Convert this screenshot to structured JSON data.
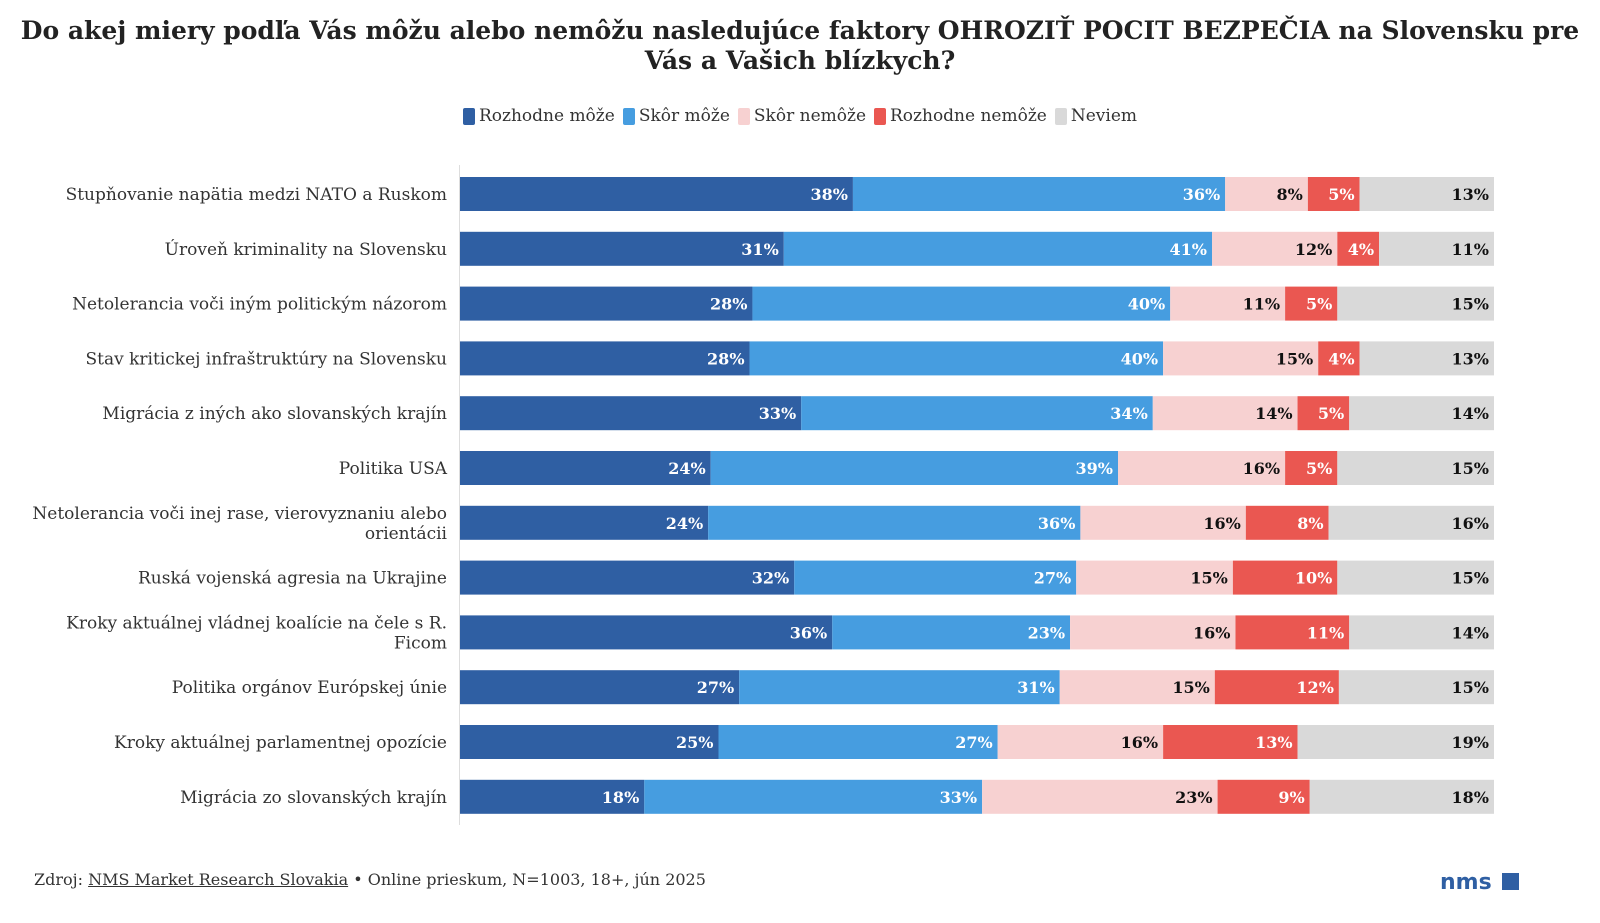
{
  "chart_data": {
    "type": "bar",
    "orientation": "horizontal",
    "stacked": true,
    "title": "Do akej miery podľa Vás môžu alebo nemôžu nasledujúce faktory OHROZIŤ POCIT BEZPEČIA na Slovensku pre Vás a Vašich blízkych?",
    "legend_position": "top",
    "grid": false,
    "categories": [
      "Stupňovanie napätia medzi NATO a Ruskom",
      "Úroveň kriminality na Slovensku",
      "Netolerancia voči iným politickým názorom",
      "Stav kritickej infraštruktúry na Slovensku",
      "Migrácia z iných ako slovanských krajín",
      "Politika USA",
      "Netolerancia voči inej rase, vierovyznaniu alebo orientácii",
      "Ruská vojenská agresia na Ukrajine",
      "Kroky aktuálnej vládnej koalície na čele s R. Ficom",
      "Politika orgánov Európskej únie",
      "Kroky aktuálnej parlamentnej opozície",
      "Migrácia zo slovanských krajín"
    ],
    "series": [
      {
        "name": "Rozhodne môže",
        "color": "#2f5fa3",
        "label_color": "#ffffff",
        "values": [
          38,
          31,
          28,
          28,
          33,
          24,
          24,
          32,
          36,
          27,
          25,
          18
        ]
      },
      {
        "name": "Skôr môže",
        "color": "#469de0",
        "label_color": "#ffffff",
        "values": [
          36,
          41,
          40,
          40,
          34,
          39,
          36,
          27,
          23,
          31,
          27,
          33
        ]
      },
      {
        "name": "Skôr nemôže",
        "color": "#f7d1d1",
        "label_color": "#111111",
        "values": [
          8,
          12,
          11,
          15,
          14,
          16,
          16,
          15,
          16,
          15,
          16,
          23
        ]
      },
      {
        "name": "Rozhodne nemôže",
        "color": "#ea5751",
        "label_color": "#ffffff",
        "values": [
          5,
          4,
          5,
          4,
          5,
          5,
          8,
          10,
          11,
          12,
          13,
          9
        ]
      },
      {
        "name": "Neviem",
        "color": "#d9d9d9",
        "label_color": "#111111",
        "values": [
          13,
          11,
          15,
          13,
          14,
          15,
          16,
          15,
          14,
          15,
          19,
          18
        ]
      }
    ],
    "value_suffix": "%"
  },
  "footer": {
    "prefix": "Zdroj: ",
    "source": "NMS Market Research Slovakia",
    "details": " • Online prieskum, N=1003, 18+, jún 2025"
  },
  "logo": {
    "text": "nms",
    "color": "#2f5fa3"
  }
}
